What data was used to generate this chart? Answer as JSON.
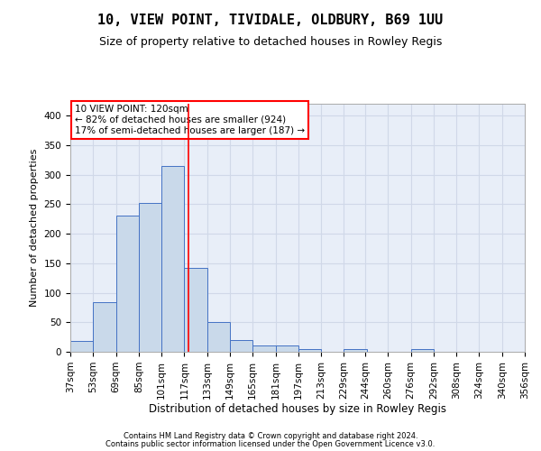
{
  "title": "10, VIEW POINT, TIVIDALE, OLDBURY, B69 1UU",
  "subtitle": "Size of property relative to detached houses in Rowley Regis",
  "xlabel": "Distribution of detached houses by size in Rowley Regis",
  "ylabel": "Number of detached properties",
  "footer1": "Contains HM Land Registry data © Crown copyright and database right 2024.",
  "footer2": "Contains public sector information licensed under the Open Government Licence v3.0.",
  "annotation_line1": "10 VIEW POINT: 120sqm",
  "annotation_line2": "← 82% of detached houses are smaller (924)",
  "annotation_line3": "17% of semi-detached houses are larger (187) →",
  "property_size_sqm": 120,
  "bar_color": "#c9d9ea",
  "bar_edge_color": "#4472c4",
  "vline_color": "red",
  "grid_color": "#d0d8e8",
  "bg_color": "#e8eef8",
  "bins": [
    37,
    53,
    69,
    85,
    101,
    117,
    133,
    149,
    165,
    181,
    197,
    213,
    229,
    244,
    260,
    276,
    292,
    308,
    324,
    340,
    356
  ],
  "counts": [
    18,
    84,
    231,
    252,
    315,
    142,
    51,
    20,
    10,
    10,
    5,
    0,
    4,
    0,
    0,
    4,
    0,
    0,
    0,
    0
  ],
  "ylim": [
    0,
    420
  ],
  "yticks": [
    0,
    50,
    100,
    150,
    200,
    250,
    300,
    350,
    400
  ],
  "annotation_box_color": "white",
  "annotation_box_edge": "red",
  "title_fontsize": 11,
  "subtitle_fontsize": 9,
  "ylabel_fontsize": 8,
  "xlabel_fontsize": 8.5,
  "tick_fontsize": 7.5,
  "footer_fontsize": 6,
  "ann_fontsize": 7.5
}
